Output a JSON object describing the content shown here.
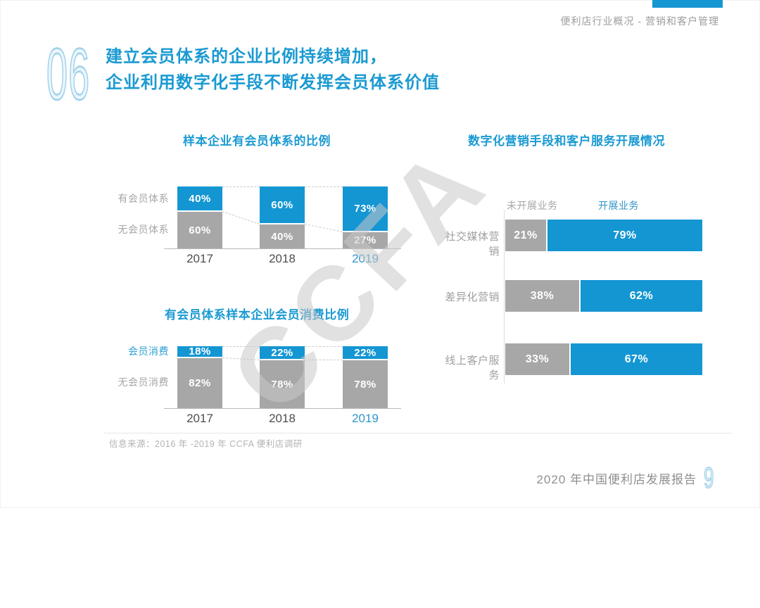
{
  "page": {
    "breadcrumb": "便利店行业概况 - 营销和客户管理",
    "section_number": "06",
    "title_line1": "建立会员体系的企业比例持续增加，",
    "title_line2": "企业利用数字化手段不断发挥会员体系价值",
    "watermark": "CCFA",
    "source_note": "信息来源：2016 年 -2019 年 CCFA 便利店调研",
    "footer_report_title": "2020 年中国便利店发展报告",
    "page_number": "9",
    "colors": {
      "accent_blue": "#1496d3",
      "bar_gray": "#a7a7a7",
      "title_blue": "#1b9ad2",
      "muted_label": "#a6a6a6",
      "member_label_blue": "#2b9fd6",
      "year_dark": "#4d4d4d",
      "year_highlight": "#3095c8"
    }
  },
  "chart_data": [
    {
      "type": "bar",
      "stacked": true,
      "orientation": "vertical",
      "title": "样本企业有会员体系的比例",
      "categories": [
        "2017",
        "2018",
        "2019"
      ],
      "unit": "%",
      "ylim": [
        0,
        100
      ],
      "highlight_category": "2019",
      "series": [
        {
          "name": "有会员体系",
          "color": "#1496d3",
          "values": [
            40,
            60,
            73
          ]
        },
        {
          "name": "无会员体系",
          "color": "#a7a7a7",
          "values": [
            60,
            40,
            27
          ]
        }
      ]
    },
    {
      "type": "bar",
      "stacked": true,
      "orientation": "vertical",
      "title": "有会员体系样本企业会员消费比例",
      "categories": [
        "2017",
        "2018",
        "2019"
      ],
      "unit": "%",
      "ylim": [
        0,
        100
      ],
      "highlight_category": "2019",
      "series": [
        {
          "name": "会员消费",
          "color": "#1496d3",
          "values": [
            18,
            22,
            22
          ]
        },
        {
          "name": "无会员消费",
          "color": "#a7a7a7",
          "values": [
            82,
            78,
            78
          ]
        }
      ]
    },
    {
      "type": "bar",
      "stacked": true,
      "orientation": "horizontal",
      "title": "数字化营销手段和客户服务开展情况",
      "categories": [
        "社交媒体营销",
        "差异化营销",
        "线上客户服务"
      ],
      "unit": "%",
      "xlim": [
        0,
        100
      ],
      "legend": [
        "未开展业务",
        "开展业务"
      ],
      "legend_position": "top",
      "series": [
        {
          "name": "未开展业务",
          "color": "#a7a7a7",
          "values": [
            21,
            38,
            33
          ]
        },
        {
          "name": "开展业务",
          "color": "#1496d3",
          "values": [
            79,
            62,
            67
          ]
        }
      ]
    }
  ]
}
